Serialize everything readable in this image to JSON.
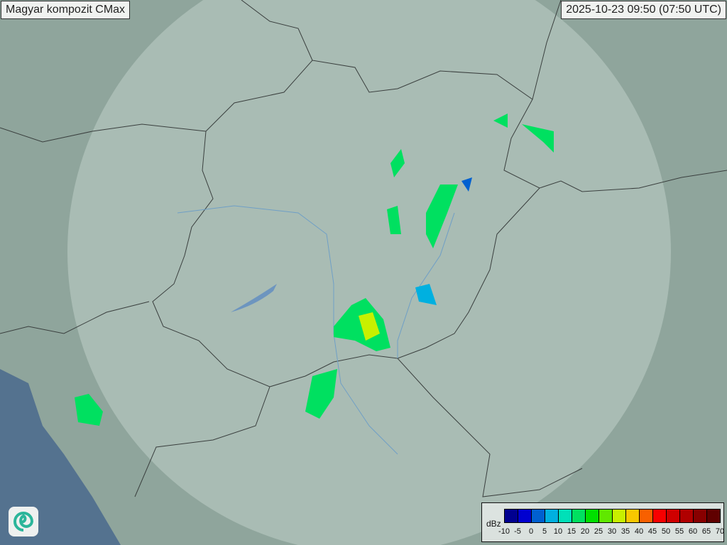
{
  "title": "Magyar kompozit  CMax",
  "timestamp": "2025-10-23 09:50 (07:50 UTC)",
  "legend": {
    "unit": "dBz",
    "ticks": [
      "-10",
      "-5",
      "0",
      "5",
      "10",
      "15",
      "20",
      "25",
      "30",
      "35",
      "40",
      "45",
      "50",
      "55",
      "60",
      "65",
      "70"
    ],
    "colors": [
      "#000090",
      "#0000d0",
      "#0060d0",
      "#00b0e0",
      "#00e0b8",
      "#00e060",
      "#00e000",
      "#60e800",
      "#c8f000",
      "#f8c800",
      "#f86000",
      "#f80000",
      "#d00000",
      "#b00000",
      "#880000",
      "#600000"
    ]
  },
  "logo_icon": "swirl-logo-icon",
  "colors": {
    "land": "#8fa59c",
    "coverage": "#b9c9c3",
    "sea": "#54728f",
    "border": "#3a3f3e",
    "river": "#6f9fc6"
  }
}
